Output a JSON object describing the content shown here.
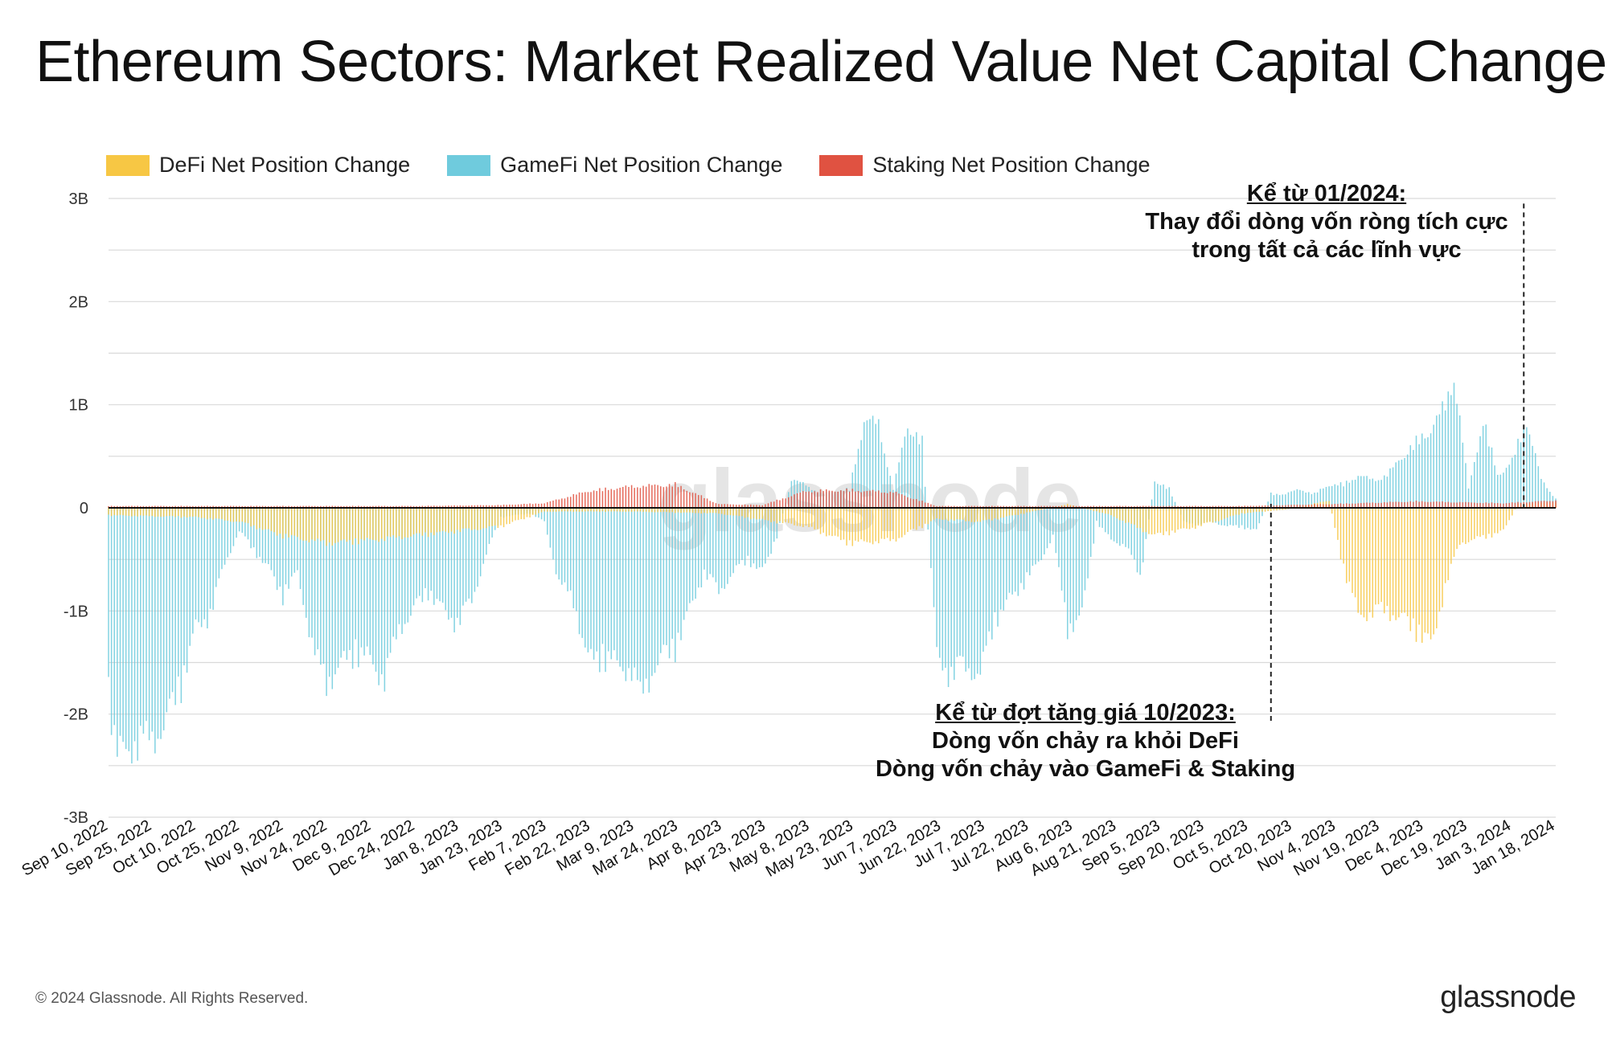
{
  "title": "Ethereum Sectors: Market Realized Value Net Capital Change",
  "legend": [
    {
      "label": "DeFi Net Position Change",
      "color": "#F7C744"
    },
    {
      "label": "GameFi Net Position Change",
      "color": "#6FCBDD"
    },
    {
      "label": "Staking Net Position Change",
      "color": "#E05241"
    }
  ],
  "annotations": {
    "left": {
      "line1": "Kể từ đợt tăng giá 10/2023:",
      "line2": "Dòng vốn chảy ra khỏi DeFi",
      "line3": "Dòng vốn chảy vào GameFi & Staking"
    },
    "right": {
      "line1": "Kể từ 01/2024:",
      "line2": "Thay đổi dòng vốn ròng tích cực",
      "line3": "trong tất cả các lĩnh vực"
    }
  },
  "watermark": "glassnode",
  "footer": "© 2024 Glassnode. All Rights Reserved.",
  "logo": "glassnode",
  "chart_data": {
    "type": "bar",
    "y_unit": "USD",
    "ylim": [
      -3000000000,
      3000000000
    ],
    "y_ticks": [
      {
        "value": 3000000000,
        "label": "3B"
      },
      {
        "value": 2000000000,
        "label": "2B"
      },
      {
        "value": 1000000000,
        "label": "1B"
      },
      {
        "value": 0,
        "label": "0"
      },
      {
        "value": -1000000000,
        "label": "-1B"
      },
      {
        "value": -2000000000,
        "label": "-2B"
      },
      {
        "value": -3000000000,
        "label": "-3B"
      }
    ],
    "x_range": [
      "2022-09-10",
      "2024-01-21"
    ],
    "x_tick_labels": [
      "Sep 10, 2022",
      "Sep 25, 2022",
      "Oct 10, 2022",
      "Oct 25, 2022",
      "Nov 9, 2022",
      "Nov 24, 2022",
      "Dec 9, 2022",
      "Dec 24, 2022",
      "Jan 8, 2023",
      "Jan 23, 2023",
      "Feb 7, 2023",
      "Feb 22, 2023",
      "Mar 9, 2023",
      "Mar 24, 2023",
      "Apr 8, 2023",
      "Apr 23, 2023",
      "May 8, 2023",
      "May 23, 2023",
      "Jun 7, 2023",
      "Jun 22, 2023",
      "Jul 7, 2023",
      "Jul 22, 2023",
      "Aug 6, 2023",
      "Aug 21, 2023",
      "Sep 5, 2023",
      "Sep 20, 2023",
      "Oct 5, 2023",
      "Oct 20, 2023",
      "Nov 4, 2023",
      "Nov 19, 2023",
      "Dec 4, 2023",
      "Dec 19, 2023",
      "Jan 3, 2024",
      "Jan 18, 2024"
    ],
    "grid": true,
    "legend_position": "top-left",
    "series": [
      {
        "name": "GameFi Net Position Change",
        "color": "#6FCBDD",
        "points": [
          [
            "2022-09-10",
            -2000000000
          ],
          [
            "2022-09-13",
            -2700000000
          ],
          [
            "2022-09-18",
            -2550000000
          ],
          [
            "2022-09-25",
            -2500000000
          ],
          [
            "2022-09-30",
            -2300000000
          ],
          [
            "2022-10-05",
            -1900000000
          ],
          [
            "2022-10-10",
            -1300000000
          ],
          [
            "2022-10-15",
            -1150000000
          ],
          [
            "2022-10-20",
            -600000000
          ],
          [
            "2022-10-25",
            -250000000
          ],
          [
            "2022-10-30",
            -450000000
          ],
          [
            "2022-11-05",
            -700000000
          ],
          [
            "2022-11-09",
            -950000000
          ],
          [
            "2022-11-14",
            -700000000
          ],
          [
            "2022-11-20",
            -1600000000
          ],
          [
            "2022-11-24",
            -1880000000
          ],
          [
            "2022-11-29",
            -1700000000
          ],
          [
            "2022-12-04",
            -1550000000
          ],
          [
            "2022-12-09",
            -1650000000
          ],
          [
            "2022-12-14",
            -1850000000
          ],
          [
            "2022-12-19",
            -1300000000
          ],
          [
            "2022-12-24",
            -1100000000
          ],
          [
            "2022-12-29",
            -900000000
          ],
          [
            "2023-01-03",
            -1100000000
          ],
          [
            "2023-01-08",
            -1250000000
          ],
          [
            "2023-01-13",
            -1000000000
          ],
          [
            "2023-01-18",
            -500000000
          ],
          [
            "2023-01-23",
            -100000000
          ],
          [
            "2023-01-28",
            -80000000
          ],
          [
            "2023-02-02",
            -60000000
          ],
          [
            "2023-02-07",
            -150000000
          ],
          [
            "2023-02-12",
            -800000000
          ],
          [
            "2023-02-17",
            -1000000000
          ],
          [
            "2023-02-22",
            -1650000000
          ],
          [
            "2023-02-27",
            -1600000000
          ],
          [
            "2023-03-04",
            -1700000000
          ],
          [
            "2023-03-09",
            -1750000000
          ],
          [
            "2023-03-12",
            -2050000000
          ],
          [
            "2023-03-17",
            -1700000000
          ],
          [
            "2023-03-24",
            -1500000000
          ],
          [
            "2023-03-29",
            -1100000000
          ],
          [
            "2023-04-03",
            -700000000
          ],
          [
            "2023-04-08",
            -900000000
          ],
          [
            "2023-04-13",
            -700000000
          ],
          [
            "2023-04-18",
            -550000000
          ],
          [
            "2023-04-23",
            -700000000
          ],
          [
            "2023-04-28",
            -300000000
          ],
          [
            "2023-05-03",
            300000000
          ],
          [
            "2023-05-08",
            250000000
          ],
          [
            "2023-05-13",
            150000000
          ],
          [
            "2023-05-18",
            180000000
          ],
          [
            "2023-05-23",
            200000000
          ],
          [
            "2023-05-28",
            950000000
          ],
          [
            "2023-06-02",
            900000000
          ],
          [
            "2023-06-07",
            200000000
          ],
          [
            "2023-06-12",
            900000000
          ],
          [
            "2023-06-17",
            700000000
          ],
          [
            "2023-06-22",
            -1600000000
          ],
          [
            "2023-06-27",
            -1800000000
          ],
          [
            "2023-07-02",
            -1700000000
          ],
          [
            "2023-07-07",
            -1800000000
          ],
          [
            "2023-07-12",
            -1200000000
          ],
          [
            "2023-07-17",
            -1000000000
          ],
          [
            "2023-07-22",
            -800000000
          ],
          [
            "2023-07-27",
            -600000000
          ],
          [
            "2023-08-01",
            -300000000
          ],
          [
            "2023-08-06",
            -1300000000
          ],
          [
            "2023-08-11",
            -1150000000
          ],
          [
            "2023-08-16",
            -150000000
          ],
          [
            "2023-08-21",
            -350000000
          ],
          [
            "2023-08-26",
            -400000000
          ],
          [
            "2023-08-31",
            -750000000
          ],
          [
            "2023-09-05",
            300000000
          ],
          [
            "2023-09-10",
            200000000
          ],
          [
            "2023-09-15",
            -150000000
          ],
          [
            "2023-09-20",
            -180000000
          ],
          [
            "2023-09-25",
            -150000000
          ],
          [
            "2023-09-30",
            -200000000
          ],
          [
            "2023-10-05",
            -200000000
          ],
          [
            "2023-10-10",
            -250000000
          ],
          [
            "2023-10-15",
            150000000
          ],
          [
            "2023-10-20",
            150000000
          ],
          [
            "2023-10-25",
            200000000
          ],
          [
            "2023-10-30",
            150000000
          ],
          [
            "2023-11-04",
            250000000
          ],
          [
            "2023-11-09",
            250000000
          ],
          [
            "2023-11-14",
            350000000
          ],
          [
            "2023-11-19",
            300000000
          ],
          [
            "2023-11-24",
            350000000
          ],
          [
            "2023-11-29",
            550000000
          ],
          [
            "2023-12-04",
            700000000
          ],
          [
            "2023-12-09",
            850000000
          ],
          [
            "2023-12-14",
            1100000000
          ],
          [
            "2023-12-17",
            1450000000
          ],
          [
            "2023-12-22",
            200000000
          ],
          [
            "2023-12-27",
            950000000
          ],
          [
            "2024-01-01",
            350000000
          ],
          [
            "2024-01-06",
            500000000
          ],
          [
            "2024-01-11",
            950000000
          ],
          [
            "2024-01-16",
            300000000
          ],
          [
            "2024-01-21",
            100000000
          ]
        ]
      },
      {
        "name": "DeFi Net Position Change",
        "color": "#F7C744",
        "points": [
          [
            "2022-09-10",
            -80000000
          ],
          [
            "2022-10-10",
            -100000000
          ],
          [
            "2022-10-25",
            -150000000
          ],
          [
            "2022-11-09",
            -300000000
          ],
          [
            "2022-11-24",
            -380000000
          ],
          [
            "2022-12-09",
            -350000000
          ],
          [
            "2022-12-24",
            -300000000
          ],
          [
            "2023-01-08",
            -250000000
          ],
          [
            "2023-01-23",
            -200000000
          ],
          [
            "2023-02-07",
            -40000000
          ],
          [
            "2023-03-09",
            -40000000
          ],
          [
            "2023-04-08",
            -60000000
          ],
          [
            "2023-05-08",
            -200000000
          ],
          [
            "2023-05-23",
            -380000000
          ],
          [
            "2023-06-07",
            -350000000
          ],
          [
            "2023-06-22",
            -120000000
          ],
          [
            "2023-07-07",
            -150000000
          ],
          [
            "2023-07-22",
            -60000000
          ],
          [
            "2023-08-06",
            40000000
          ],
          [
            "2023-08-21",
            -80000000
          ],
          [
            "2023-09-05",
            -300000000
          ],
          [
            "2023-09-20",
            -200000000
          ],
          [
            "2023-10-05",
            -60000000
          ],
          [
            "2023-10-20",
            -20000000
          ],
          [
            "2023-11-04",
            80000000
          ],
          [
            "2023-11-09",
            -650000000
          ],
          [
            "2023-11-14",
            -1150000000
          ],
          [
            "2023-11-24",
            -1100000000
          ],
          [
            "2023-12-04",
            -1300000000
          ],
          [
            "2023-12-09",
            -1500000000
          ],
          [
            "2023-12-14",
            -850000000
          ],
          [
            "2023-12-19",
            -380000000
          ],
          [
            "2023-12-29",
            -300000000
          ],
          [
            "2024-01-03",
            -250000000
          ],
          [
            "2024-01-08",
            40000000
          ],
          [
            "2024-01-21",
            60000000
          ]
        ]
      },
      {
        "name": "Staking Net Position Change",
        "color": "#E05241",
        "points": [
          [
            "2022-09-10",
            20000000
          ],
          [
            "2022-12-24",
            20000000
          ],
          [
            "2023-01-23",
            30000000
          ],
          [
            "2023-02-07",
            50000000
          ],
          [
            "2023-02-22",
            180000000
          ],
          [
            "2023-03-09",
            230000000
          ],
          [
            "2023-03-24",
            250000000
          ],
          [
            "2023-04-08",
            40000000
          ],
          [
            "2023-04-23",
            30000000
          ],
          [
            "2023-05-08",
            180000000
          ],
          [
            "2023-05-23",
            190000000
          ],
          [
            "2023-06-07",
            170000000
          ],
          [
            "2023-06-22",
            20000000
          ],
          [
            "2023-08-06",
            20000000
          ],
          [
            "2023-10-05",
            20000000
          ],
          [
            "2023-11-04",
            40000000
          ],
          [
            "2023-12-04",
            70000000
          ],
          [
            "2023-12-19",
            60000000
          ],
          [
            "2024-01-03",
            50000000
          ],
          [
            "2024-01-21",
            80000000
          ]
        ]
      }
    ]
  }
}
